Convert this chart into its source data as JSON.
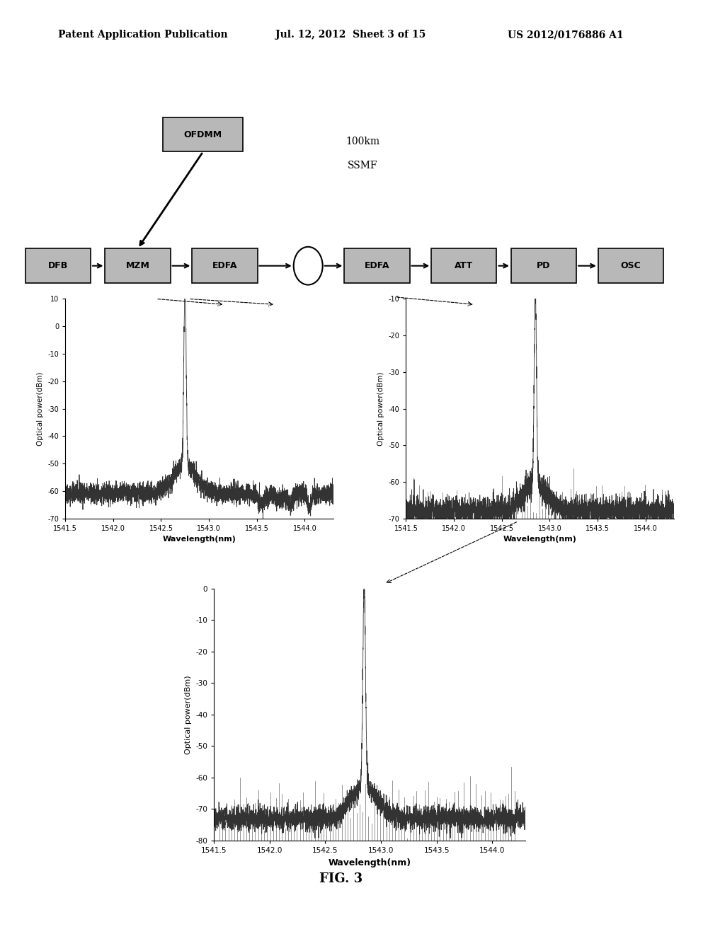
{
  "header_left": "Patent Application Publication",
  "header_mid": "Jul. 12, 2012  Sheet 3 of 15",
  "header_right": "US 2012/0176886 A1",
  "caption": "FIG. 3",
  "blocks": [
    "DFB",
    "MZM",
    "EDFA",
    "EDFA",
    "ATT",
    "PD",
    "OSC"
  ],
  "top_block": "OFDMM",
  "fiber_label1": "100km",
  "fiber_label2": "SSMF",
  "plot1": {
    "ylabel": "Optical power(dBm)",
    "xlabel": "Wavelength(nm)",
    "xlim": [
      1541.5,
      1544.3
    ],
    "ylim": [
      -70,
      10
    ],
    "yticks": [
      10,
      0,
      -10,
      -20,
      -30,
      -40,
      -50,
      -60,
      -70
    ],
    "xticks": [
      1541.5,
      1542.0,
      1542.5,
      1543.0,
      1543.5,
      1544.0
    ],
    "peak_x": 1542.75,
    "peak_y": 6.5,
    "noise_floor": -61,
    "side_peak1_x": 1543.75,
    "side_peak1_y": -63,
    "side_peak2_x": 1543.55,
    "side_peak2_y": -65
  },
  "plot2": {
    "ylabel": "Optical power(dBm)",
    "xlabel": "Wavelength(nm)",
    "xlim": [
      1541.5,
      1544.3
    ],
    "ylim": [
      -70,
      -10
    ],
    "yticks": [
      -10,
      -20,
      -30,
      -40,
      -50,
      -60,
      -70
    ],
    "xticks": [
      1541.5,
      1542.0,
      1542.5,
      1543.0,
      1543.5,
      1544.0
    ],
    "peak_x": 1542.85,
    "peak_y": -15,
    "noise_floor": -68,
    "bar_floor": -70,
    "bar_top_mean": -65,
    "bar_top_std": 3
  },
  "plot3": {
    "ylabel": "Optical power(dBm)",
    "xlabel": "Wavelength(nm)",
    "xlim": [
      1541.5,
      1544.3
    ],
    "ylim": [
      -80,
      0
    ],
    "yticks": [
      0,
      -10,
      -20,
      -30,
      -40,
      -50,
      -60,
      -70,
      -80
    ],
    "xticks": [
      1541.5,
      1542.0,
      1542.5,
      1543.0,
      1543.5,
      1544.0
    ],
    "peak_x": 1542.85,
    "peak_y": -8,
    "noise_floor": -73,
    "bar_floor": -80,
    "bar_top_mean": -68,
    "bar_top_std": 4
  },
  "bg_color": "#ffffff",
  "box_color": "#b8b8b8",
  "box_edge": "#000000",
  "text_color": "#000000"
}
